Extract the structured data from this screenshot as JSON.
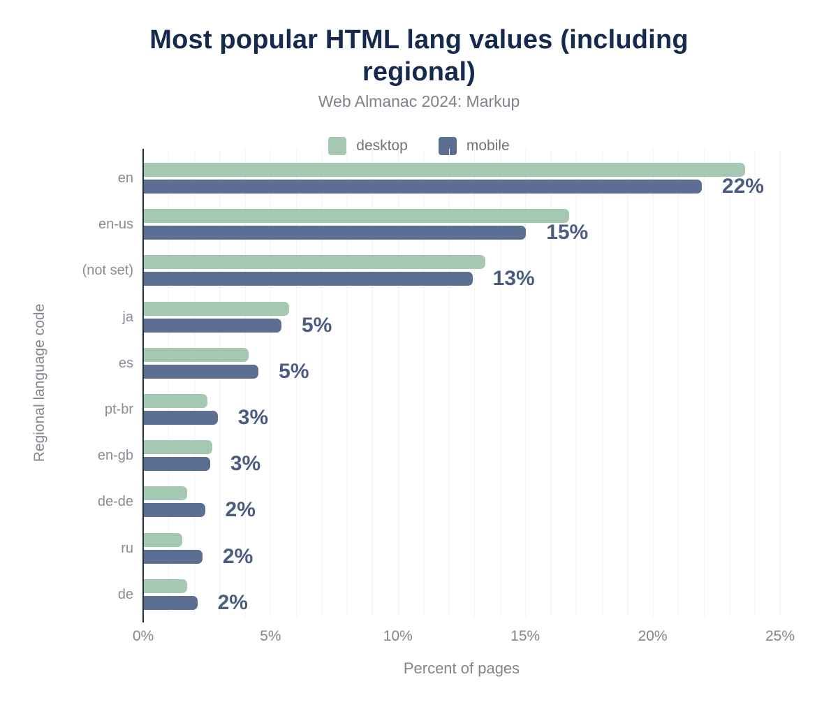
{
  "header": {
    "title": "Most popular HTML lang values (including regional)",
    "subtitle": "Web Almanac 2024: Markup"
  },
  "legend": [
    {
      "label": "desktop",
      "color": "#a5c8b2"
    },
    {
      "label": "mobile",
      "color": "#5c6f93"
    }
  ],
  "chart_data": {
    "type": "bar",
    "orientation": "horizontal",
    "title": "Most popular HTML lang values (including regional)",
    "subtitle": "Web Almanac 2024: Markup",
    "categories": [
      "en",
      "en-us",
      "(not set)",
      "ja",
      "es",
      "pt-br",
      "en-gb",
      "de-de",
      "ru",
      "de"
    ],
    "series": [
      {
        "name": "desktop",
        "color": "#a5c8b2",
        "values": [
          23.6,
          16.7,
          13.4,
          5.7,
          4.1,
          2.5,
          2.7,
          1.7,
          1.5,
          1.7
        ]
      },
      {
        "name": "mobile",
        "color": "#5c6f93",
        "values": [
          21.9,
          15.0,
          12.9,
          5.4,
          4.5,
          2.9,
          2.6,
          2.4,
          2.3,
          2.1
        ]
      }
    ],
    "value_labels": [
      "22%",
      "15%",
      "13%",
      "5%",
      "5%",
      "3%",
      "3%",
      "2%",
      "2%",
      "2%"
    ],
    "xlabel": "Percent of pages",
    "ylabel": "Regional language code",
    "xlim": [
      0,
      25
    ],
    "x_tick_labels": [
      "0%",
      "5%",
      "10%",
      "15%",
      "20%",
      "25%"
    ],
    "grid": "minor-vertical-every-1-percent",
    "legend_position": "top-center"
  },
  "colors": {
    "title": "#152a4d",
    "subtitle": "#7d828c",
    "axis_line": "#262d36",
    "gridline": "#f1f1f4",
    "desktop_bar": "#a5c8b2",
    "mobile_bar": "#5c6f93",
    "value_label": "#4b5c80",
    "tick_label": "#81868f"
  }
}
